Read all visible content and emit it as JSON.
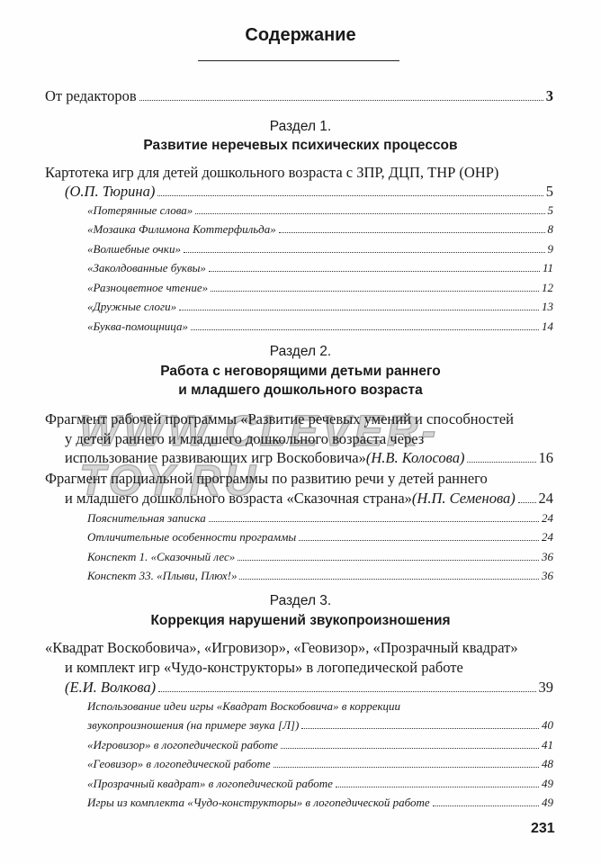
{
  "title": "Содержание",
  "editors": {
    "text": "От редакторов",
    "page": "3"
  },
  "sections": [
    {
      "label": "Раздел 1.",
      "heading_lines": [
        "Развитие неречевых психических процессов"
      ],
      "entries": [
        {
          "lines": [
            "Картотека игр для детей дошкольного возраста с ЗПР, ДЦП, ТНР (ОНР)",
            ""
          ],
          "author": "(О.П. Тюрина)",
          "page": "5",
          "subitems": [
            {
              "lines": [
                "«Потерянные слова»"
              ],
              "page": "5"
            },
            {
              "lines": [
                "«Мозаика Филимона Коттерфильда»"
              ],
              "page": "8"
            },
            {
              "lines": [
                "«Волшебные очки»"
              ],
              "page": "9"
            },
            {
              "lines": [
                "«Заколдованные буквы»"
              ],
              "page": "11"
            },
            {
              "lines": [
                "«Разноцветное чтение»"
              ],
              "page": "12"
            },
            {
              "lines": [
                "«Дружные слоги»"
              ],
              "page": "13"
            },
            {
              "lines": [
                "«Буква-помощница»"
              ],
              "page": "14"
            }
          ]
        }
      ]
    },
    {
      "label": "Раздел 2.",
      "heading_lines": [
        "Работа с неговорящими детьми раннего",
        "и младшего дошкольного возраста"
      ],
      "entries": [
        {
          "lines": [
            "Фрагмент рабочей программы «Развитие речевых умений и способностей",
            "у детей раннего и младшего дошкольного возраста через",
            "использование развивающих игр Воскобовича» "
          ],
          "author": "(Н.В. Колосова)",
          "page": "16",
          "subitems": []
        },
        {
          "lines": [
            "Фрагмент парциальной программы по развитию речи у детей раннего",
            "и младшего дошкольного возраста «Сказочная страна» "
          ],
          "author": "(Н.П. Семенова)",
          "page": "24",
          "subitems": [
            {
              "lines": [
                "Пояснительная записка"
              ],
              "page": "24"
            },
            {
              "lines": [
                "Отличительные особенности программы"
              ],
              "page": "24"
            },
            {
              "lines": [
                "Конспект 1. «Сказочный лес»"
              ],
              "page": "36"
            },
            {
              "lines": [
                "Конспект 33. «Плыви, Плюх!»"
              ],
              "page": "36"
            }
          ]
        }
      ]
    },
    {
      "label": "Раздел 3.",
      "heading_lines": [
        "Коррекция нарушений звукопроизношения"
      ],
      "entries": [
        {
          "lines": [
            "«Квадрат Воскобовича», «Игровизор», «Геовизор», «Прозрачный квадрат»",
            "и комплект игр «Чудо-конструкторы» в логопедической работе",
            ""
          ],
          "author": "(Е.И. Волкова)",
          "page": "39",
          "subitems": [
            {
              "lines": [
                "Использование идеи игры «Квадрат Воскобовича» в коррекции",
                "звукопроизношения (на примере звука [Л])"
              ],
              "page": "40"
            },
            {
              "lines": [
                "«Игровизор» в логопедической работе"
              ],
              "page": "41"
            },
            {
              "lines": [
                "«Геовизор» в логопедической работе"
              ],
              "page": "48"
            },
            {
              "lines": [
                "«Прозрачный квадрат» в логопедической работе"
              ],
              "page": "49"
            },
            {
              "lines": [
                "Игры из комплекта «Чудо-конструкторы» в логопедической работе"
              ],
              "page": "49"
            }
          ]
        }
      ]
    }
  ],
  "watermark": "WWW.CLEVER-TOY.RU",
  "page_number": "231"
}
